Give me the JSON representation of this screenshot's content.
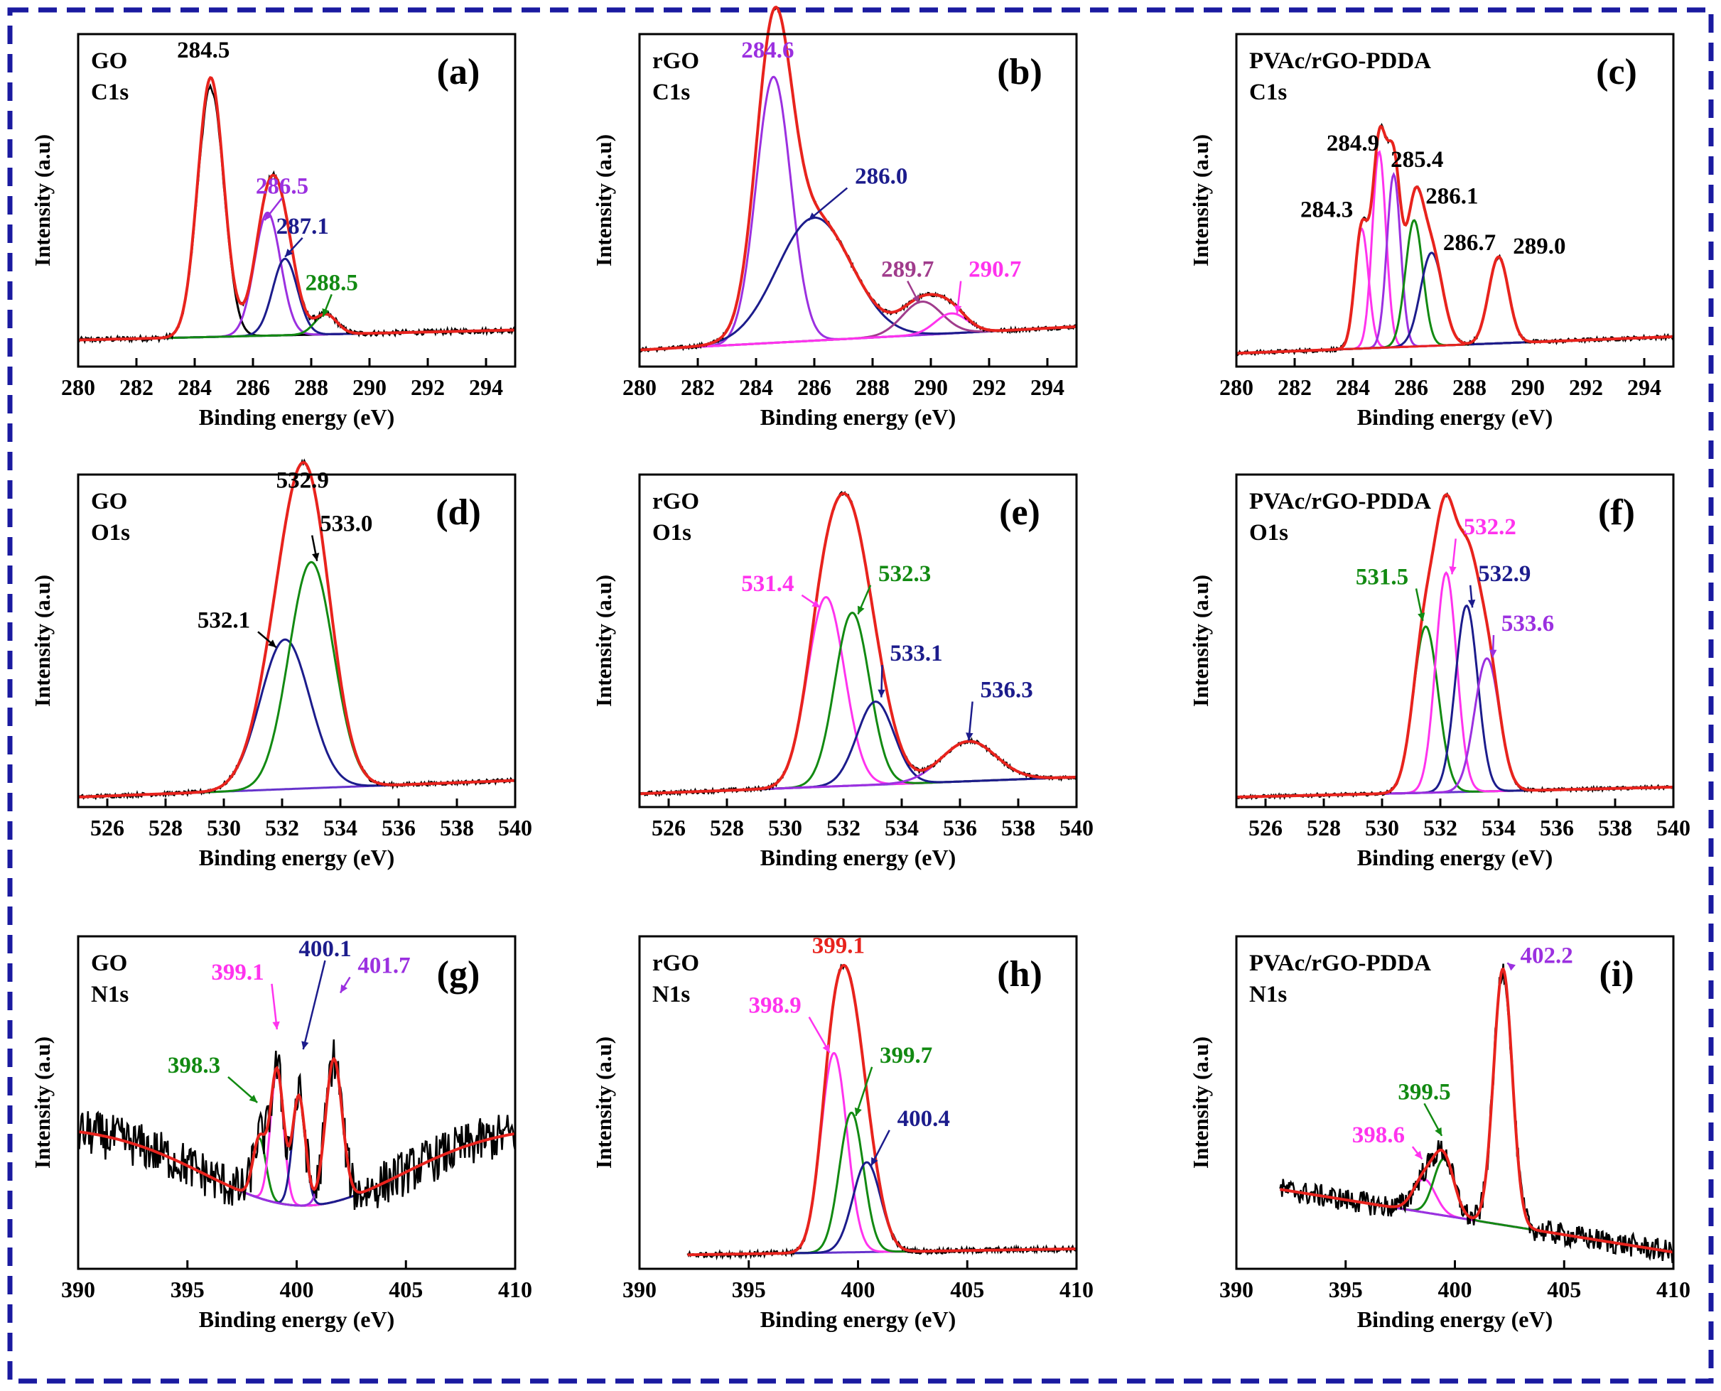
{
  "figure": {
    "border_color": "#1a1aa0",
    "x_label": "Binding energy (eV)",
    "y_label": "Intensity (a.u)"
  },
  "colors": {
    "envelope": "#e8231d",
    "raw": "#000000",
    "baseline": "#6633cc",
    "violet": "#9b30e0",
    "navy": "#1c1c8c",
    "green": "#128a12",
    "magenta": "#ff33ee",
    "purple": "#9b30e0",
    "plum": "#a03c8c",
    "black": "#000000",
    "red": "#e8231d"
  },
  "chart_data": [
    {
      "type": "line",
      "tag": "(a)",
      "legend": [
        "GO",
        "C1s"
      ],
      "xlim": [
        280,
        295
      ],
      "xticks": [
        280,
        282,
        284,
        286,
        288,
        290,
        292,
        294
      ],
      "ylim": [
        0,
        100
      ],
      "baseline": [
        8,
        11
      ],
      "noise": 0.8,
      "raw_offset": -3,
      "components": [
        {
          "center": 284.55,
          "height": 78,
          "fwhm": 1.05,
          "color": "black"
        },
        {
          "center": 286.5,
          "height": 37,
          "fwhm": 1.05,
          "color": "violet"
        },
        {
          "center": 287.1,
          "height": 23,
          "fwhm": 1.0,
          "color": "navy"
        },
        {
          "center": 288.5,
          "height": 6,
          "fwhm": 0.9,
          "color": "green"
        }
      ],
      "annotations": [
        {
          "text": "284.5",
          "color": "black",
          "x": 284.3,
          "y": 93,
          "arrow": false
        },
        {
          "text": "286.5",
          "color": "violet",
          "x": 287.0,
          "y": 52,
          "ax": 286.4,
          "ay": 44,
          "arrow": true
        },
        {
          "text": "287.1",
          "color": "navy",
          "x": 287.7,
          "y": 40,
          "ax": 287.1,
          "ay": 33,
          "arrow": true
        },
        {
          "text": "288.5",
          "color": "green",
          "x": 288.7,
          "y": 23,
          "ax": 288.4,
          "ay": 15,
          "arrow": true
        }
      ]
    },
    {
      "type": "line",
      "tag": "(b)",
      "legend": [
        "rGO",
        "C1s"
      ],
      "xlim": [
        280,
        295
      ],
      "xticks": [
        280,
        282,
        284,
        286,
        288,
        290,
        292,
        294
      ],
      "ylim": [
        0,
        100
      ],
      "baseline": [
        5,
        12
      ],
      "noise": 0.6,
      "raw_offset": 0,
      "components": [
        {
          "center": 284.6,
          "height": 80,
          "fwhm": 1.4,
          "color": "violet"
        },
        {
          "center": 286.0,
          "height": 37,
          "fwhm": 3.0,
          "color": "navy"
        },
        {
          "center": 289.7,
          "height": 10,
          "fwhm": 1.6,
          "color": "plum"
        },
        {
          "center": 290.7,
          "height": 6,
          "fwhm": 1.3,
          "color": "magenta"
        }
      ],
      "annotations": [
        {
          "text": "284.6",
          "color": "violet",
          "x": 284.4,
          "y": 93,
          "arrow": false
        },
        {
          "text": "286.0",
          "color": "navy",
          "x": 288.3,
          "y": 55,
          "ax": 285.8,
          "ay": 44,
          "arrow": true
        },
        {
          "text": "289.7",
          "color": "plum",
          "x": 289.2,
          "y": 27,
          "ax": 289.6,
          "ay": 19,
          "arrow": true
        },
        {
          "text": "290.7",
          "color": "magenta",
          "x": 292.2,
          "y": 27,
          "ax": 290.9,
          "ay": 16,
          "arrow": true
        }
      ]
    },
    {
      "type": "line",
      "tag": "(c)",
      "legend": [
        "PVAc/rGO-PDDA",
        "C1s"
      ],
      "xlim": [
        280,
        295
      ],
      "xticks": [
        280,
        282,
        284,
        286,
        288,
        290,
        292,
        294
      ],
      "ylim": [
        0,
        100
      ],
      "baseline": [
        4,
        9
      ],
      "noise": 0.6,
      "raw_offset": 0,
      "components": [
        {
          "center": 284.3,
          "height": 36,
          "fwhm": 0.55,
          "color": "magenta"
        },
        {
          "center": 284.9,
          "height": 59,
          "fwhm": 0.55,
          "color": "magenta"
        },
        {
          "center": 285.4,
          "height": 52,
          "fwhm": 0.55,
          "color": "purple"
        },
        {
          "center": 286.1,
          "height": 38,
          "fwhm": 0.7,
          "color": "green"
        },
        {
          "center": 286.7,
          "height": 28,
          "fwhm": 0.9,
          "color": "navy"
        },
        {
          "center": 289.0,
          "height": 26,
          "fwhm": 0.8,
          "color": "red"
        }
      ],
      "annotations": [
        {
          "text": "284.9",
          "color": "black",
          "x": 284.0,
          "y": 65,
          "arrow": false
        },
        {
          "text": "285.4",
          "color": "black",
          "x": 286.2,
          "y": 60,
          "arrow": false
        },
        {
          "text": "284.3",
          "color": "black",
          "x": 283.1,
          "y": 45,
          "arrow": false
        },
        {
          "text": "286.1",
          "color": "black",
          "x": 287.4,
          "y": 49,
          "arrow": false
        },
        {
          "text": "286.7",
          "color": "black",
          "x": 288.0,
          "y": 35,
          "arrow": false
        },
        {
          "text": "289.0",
          "color": "black",
          "x": 290.4,
          "y": 34,
          "arrow": false
        }
      ]
    },
    {
      "type": "line",
      "tag": "(d)",
      "legend": [
        "GO",
        "O1s"
      ],
      "xlim": [
        525,
        540
      ],
      "xticks": [
        526,
        528,
        530,
        532,
        534,
        536,
        538,
        540
      ],
      "ylim": [
        0,
        100
      ],
      "baseline": [
        3,
        8
      ],
      "noise": 0.6,
      "raw_offset": 0,
      "components": [
        {
          "center": 532.1,
          "height": 45,
          "fwhm": 2.0,
          "color": "navy"
        },
        {
          "center": 533.0,
          "height": 68,
          "fwhm": 1.8,
          "color": "green"
        }
      ],
      "annotations": [
        {
          "text": "532.9",
          "color": "black",
          "x": 532.7,
          "y": 96,
          "arrow": false
        },
        {
          "text": "533.0",
          "color": "black",
          "x": 534.2,
          "y": 83,
          "ax": 533.2,
          "ay": 74,
          "arrow": true
        },
        {
          "text": "532.1",
          "color": "black",
          "x": 530.0,
          "y": 54,
          "ax": 531.8,
          "ay": 48,
          "arrow": true
        }
      ]
    },
    {
      "type": "line",
      "tag": "(e)",
      "legend": [
        "rGO",
        "O1s"
      ],
      "xlim": [
        525,
        540
      ],
      "xticks": [
        526,
        528,
        530,
        532,
        534,
        536,
        538,
        540
      ],
      "ylim": [
        0,
        100
      ],
      "baseline": [
        4,
        9
      ],
      "noise": 0.6,
      "raw_offset": 0,
      "components": [
        {
          "center": 531.4,
          "height": 57,
          "fwhm": 1.5,
          "color": "magenta"
        },
        {
          "center": 532.3,
          "height": 52,
          "fwhm": 1.4,
          "color": "green"
        },
        {
          "center": 533.1,
          "height": 25,
          "fwhm": 1.5,
          "color": "navy"
        },
        {
          "center": 536.3,
          "height": 12,
          "fwhm": 2.2,
          "color": "purple"
        }
      ],
      "annotations": [
        {
          "text": "531.4",
          "color": "magenta",
          "x": 529.4,
          "y": 65,
          "ax": 531.2,
          "ay": 60,
          "arrow": true
        },
        {
          "text": "532.3",
          "color": "green",
          "x": 534.1,
          "y": 68,
          "ax": 532.5,
          "ay": 58,
          "arrow": true
        },
        {
          "text": "533.1",
          "color": "navy",
          "x": 534.5,
          "y": 44,
          "ax": 533.3,
          "ay": 33,
          "arrow": true
        },
        {
          "text": "536.3",
          "color": "navy",
          "x": 537.6,
          "y": 33,
          "ax": 536.3,
          "ay": 20,
          "arrow": true
        }
      ]
    },
    {
      "type": "line",
      "tag": "(f)",
      "legend": [
        "PVAc/rGO-PDDA",
        "O1s"
      ],
      "xlim": [
        525,
        540
      ],
      "xticks": [
        526,
        528,
        530,
        532,
        534,
        536,
        538,
        540
      ],
      "ylim": [
        0,
        100
      ],
      "baseline": [
        3,
        6
      ],
      "noise": 0.5,
      "raw_offset": 0,
      "components": [
        {
          "center": 531.5,
          "height": 50,
          "fwhm": 1.0,
          "color": "green"
        },
        {
          "center": 532.2,
          "height": 66,
          "fwhm": 0.85,
          "color": "magenta"
        },
        {
          "center": 532.9,
          "height": 56,
          "fwhm": 0.9,
          "color": "navy"
        },
        {
          "center": 533.6,
          "height": 40,
          "fwhm": 1.0,
          "color": "purple"
        }
      ],
      "annotations": [
        {
          "text": "532.2",
          "color": "magenta",
          "x": 533.7,
          "y": 82,
          "ax": 532.4,
          "ay": 70,
          "arrow": true
        },
        {
          "text": "531.5",
          "color": "green",
          "x": 530.0,
          "y": 67,
          "ax": 531.4,
          "ay": 56,
          "arrow": true
        },
        {
          "text": "532.9",
          "color": "navy",
          "x": 534.2,
          "y": 68,
          "ax": 533.1,
          "ay": 60,
          "arrow": true
        },
        {
          "text": "533.6",
          "color": "purple",
          "x": 535.0,
          "y": 53,
          "ax": 533.8,
          "ay": 45,
          "arrow": true
        }
      ]
    },
    {
      "type": "line",
      "tag": "(g)",
      "legend": [
        "GO",
        "N1s"
      ],
      "xlim": [
        390,
        410
      ],
      "xticks": [
        390,
        395,
        400,
        405,
        410
      ],
      "ylim": [
        0,
        100
      ],
      "baseline": [
        43,
        43
      ],
      "baseline_dip": {
        "center": 400.3,
        "depth": 24,
        "width": 4.5
      },
      "noise": 7,
      "raw_offset": 0,
      "components": [
        {
          "center": 398.3,
          "height": 18,
          "fwhm": 0.7,
          "color": "green"
        },
        {
          "center": 399.1,
          "height": 40,
          "fwhm": 0.7,
          "color": "magenta"
        },
        {
          "center": 400.1,
          "height": 33,
          "fwhm": 0.7,
          "color": "navy"
        },
        {
          "center": 401.7,
          "height": 43,
          "fwhm": 0.9,
          "color": "purple"
        }
      ],
      "annotations": [
        {
          "text": "399.1",
          "color": "magenta",
          "x": 397.3,
          "y": 87,
          "ax": 399.1,
          "ay": 72,
          "arrow": true
        },
        {
          "text": "400.1",
          "color": "navy",
          "x": 401.3,
          "y": 94,
          "ax": 400.3,
          "ay": 66,
          "arrow": true
        },
        {
          "text": "401.7",
          "color": "purple",
          "x": 404.0,
          "y": 89,
          "ax": 402.0,
          "ay": 83,
          "arrow": true
        },
        {
          "text": "398.3",
          "color": "green",
          "x": 395.3,
          "y": 59,
          "ax": 398.2,
          "ay": 50,
          "arrow": true
        }
      ]
    },
    {
      "type": "line",
      "tag": "(h)",
      "legend": [
        "rGO",
        "N1s"
      ],
      "xlim": [
        390,
        410
      ],
      "xticks": [
        390,
        395,
        400,
        405,
        410
      ],
      "ylim": [
        0,
        100
      ],
      "baseline": [
        4,
        6
      ],
      "noise": 0.8,
      "data_start": 392.2,
      "raw_offset": 0,
      "components": [
        {
          "center": 398.9,
          "height": 60,
          "fwhm": 1.4,
          "color": "magenta"
        },
        {
          "center": 399.7,
          "height": 42,
          "fwhm": 1.3,
          "color": "green"
        },
        {
          "center": 400.4,
          "height": 27,
          "fwhm": 1.5,
          "color": "navy"
        }
      ],
      "annotations": [
        {
          "text": "399.1",
          "color": "red",
          "x": 399.1,
          "y": 95,
          "arrow": false
        },
        {
          "text": "398.9",
          "color": "magenta",
          "x": 396.2,
          "y": 77,
          "ax": 398.7,
          "ay": 65,
          "arrow": true
        },
        {
          "text": "399.7",
          "color": "green",
          "x": 402.2,
          "y": 62,
          "ax": 399.9,
          "ay": 46,
          "arrow": true
        },
        {
          "text": "400.4",
          "color": "navy",
          "x": 403.0,
          "y": 43,
          "ax": 400.6,
          "ay": 31,
          "arrow": true
        }
      ]
    },
    {
      "type": "line",
      "tag": "(i)",
      "legend": [
        "PVAc/rGO-PDDA",
        "N1s"
      ],
      "xlim": [
        390,
        410
      ],
      "xticks": [
        390,
        395,
        400,
        405,
        410
      ],
      "ylim": [
        0,
        100
      ],
      "baseline": [
        26,
        5
      ],
      "noise": 3.5,
      "data_start": 392.0,
      "raw_offset": 0,
      "components": [
        {
          "center": 398.6,
          "height": 10,
          "fwhm": 1.2,
          "color": "magenta"
        },
        {
          "center": 399.5,
          "height": 17,
          "fwhm": 1.1,
          "color": "green"
        },
        {
          "center": 402.2,
          "height": 77,
          "fwhm": 1.0,
          "color": "purple"
        }
      ],
      "annotations": [
        {
          "text": "402.2",
          "color": "purple",
          "x": 404.2,
          "y": 92,
          "ax": 402.4,
          "ay": 92,
          "arrow": true
        },
        {
          "text": "399.5",
          "color": "green",
          "x": 398.6,
          "y": 51,
          "ax": 399.4,
          "ay": 40,
          "arrow": true
        },
        {
          "text": "398.6",
          "color": "magenta",
          "x": 396.5,
          "y": 38,
          "ax": 398.5,
          "ay": 33,
          "arrow": true
        }
      ]
    }
  ]
}
